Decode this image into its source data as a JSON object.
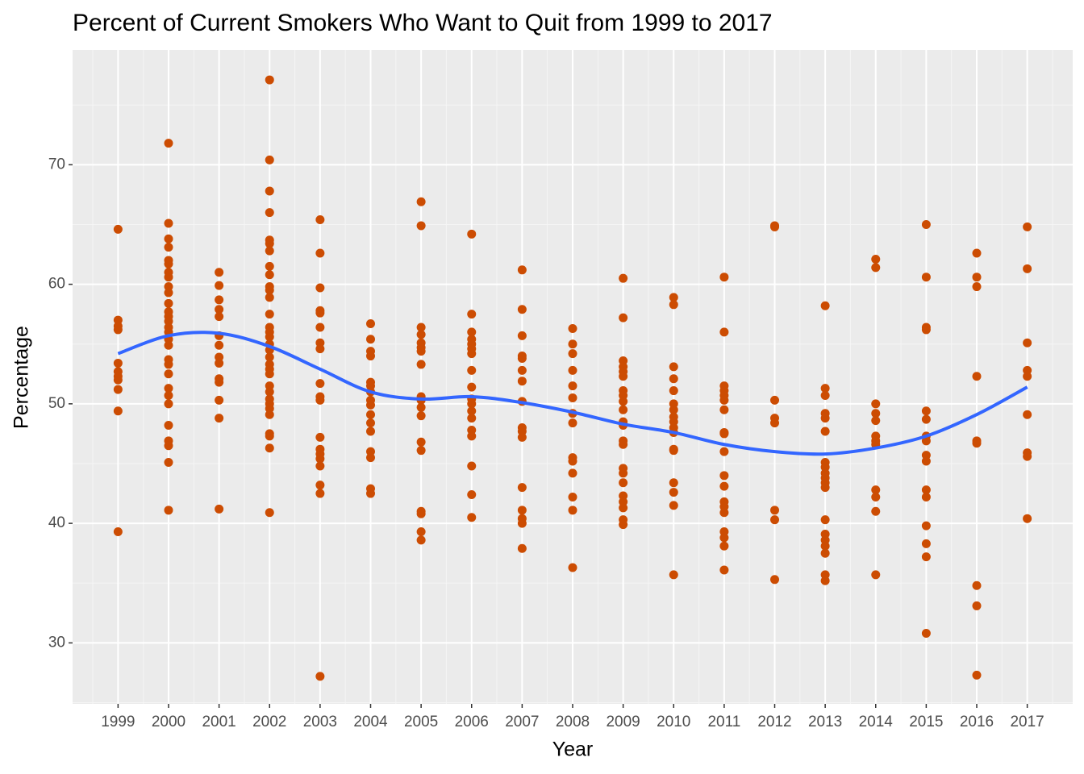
{
  "chart_data": {
    "type": "scatter",
    "title": "Percent of Current Smokers Who Want to Quit from 1999 to 2017",
    "x_label": "Year",
    "y_label": "Percentage",
    "xlim": [
      1998.1,
      2017.9
    ],
    "ylim": [
      24.9,
      79.6
    ],
    "xticks": [
      1999,
      2000,
      2001,
      2002,
      2003,
      2004,
      2005,
      2006,
      2007,
      2008,
      2009,
      2010,
      2011,
      2012,
      2013,
      2014,
      2015,
      2016,
      2017
    ],
    "yticks": [
      30,
      40,
      50,
      60,
      70
    ],
    "grid": true,
    "minor_grid": true,
    "series": [
      {
        "type": "scatter",
        "color": "#cc4c02",
        "x": [
          1999,
          2000,
          2001,
          2002,
          2003,
          2004,
          2005,
          2006,
          2007,
          2008,
          2009,
          2010,
          2011,
          2012,
          2013,
          2014,
          2015,
          2016,
          2017
        ],
        "values": [
          [
            64.6,
            57.0,
            56.5,
            56.2,
            53.4,
            52.7,
            52.3,
            52.0,
            51.2,
            49.4,
            39.3
          ],
          [
            71.8,
            65.1,
            63.8,
            63.1,
            62.0,
            61.7,
            61.0,
            60.6,
            59.8,
            59.3,
            58.4,
            57.7,
            57.3,
            56.9,
            56.4,
            56.0,
            55.4,
            54.9,
            53.7,
            53.3,
            52.5,
            51.3,
            50.7,
            50.0,
            48.2,
            46.9,
            46.5,
            45.1,
            41.1
          ],
          [
            61.0,
            59.9,
            58.7,
            57.9,
            57.3,
            55.7,
            54.9,
            53.9,
            53.4,
            52.1,
            51.8,
            50.3,
            48.8,
            41.2
          ],
          [
            77.1,
            70.4,
            67.8,
            66.0,
            63.7,
            63.4,
            62.8,
            61.5,
            60.8,
            59.8,
            59.5,
            58.9,
            57.5,
            56.4,
            56.0,
            55.6,
            55.0,
            54.5,
            53.9,
            53.3,
            52.9,
            52.5,
            51.5,
            51.0,
            50.4,
            50.0,
            49.6,
            49.1,
            47.5,
            47.3,
            46.3,
            40.9
          ],
          [
            65.4,
            62.6,
            59.7,
            57.8,
            57.6,
            56.4,
            55.1,
            54.6,
            51.7,
            50.6,
            50.3,
            47.2,
            46.2,
            45.8,
            45.4,
            44.8,
            43.2,
            42.5,
            27.2
          ],
          [
            56.7,
            55.4,
            54.4,
            54.0,
            51.8,
            51.5,
            51.0,
            50.3,
            49.9,
            49.1,
            48.4,
            47.7,
            46.0,
            45.5,
            42.9,
            42.5
          ],
          [
            66.9,
            64.9,
            56.4,
            55.8,
            55.1,
            54.7,
            54.4,
            53.3,
            50.6,
            50.3,
            49.7,
            49.0,
            46.8,
            46.1,
            41.0,
            40.8,
            39.3,
            38.6
          ],
          [
            64.2,
            57.5,
            56.0,
            55.4,
            55.0,
            54.6,
            54.2,
            52.8,
            51.4,
            50.4,
            50.0,
            49.4,
            48.8,
            47.8,
            47.3,
            44.8,
            42.4,
            40.5
          ],
          [
            61.2,
            57.9,
            55.7,
            54.0,
            53.8,
            52.8,
            51.9,
            50.2,
            48.0,
            47.7,
            47.2,
            43.0,
            41.1,
            40.4,
            40.0,
            37.9
          ],
          [
            56.3,
            55.0,
            54.2,
            52.8,
            51.5,
            50.5,
            49.2,
            48.4,
            45.5,
            45.2,
            44.2,
            42.2,
            41.1,
            36.3
          ],
          [
            60.5,
            57.2,
            53.6,
            53.1,
            52.7,
            52.3,
            51.1,
            50.7,
            50.2,
            49.5,
            48.5,
            48.2,
            46.9,
            46.6,
            44.6,
            44.2,
            43.4,
            42.3,
            41.8,
            41.3,
            40.3,
            39.9
          ],
          [
            58.9,
            58.3,
            53.1,
            52.1,
            51.1,
            50.0,
            49.5,
            48.9,
            48.5,
            48.0,
            47.6,
            46.2,
            46.1,
            43.4,
            42.6,
            41.5,
            35.7
          ],
          [
            60.6,
            56.0,
            51.5,
            51.1,
            50.7,
            50.3,
            49.5,
            47.6,
            47.5,
            46.0,
            44.0,
            43.1,
            41.8,
            41.4,
            40.9,
            39.3,
            38.8,
            38.1,
            36.1
          ],
          [
            64.9,
            64.8,
            50.3,
            48.8,
            48.4,
            41.1,
            40.3,
            35.3
          ],
          [
            58.2,
            51.3,
            50.7,
            49.2,
            48.8,
            47.7,
            45.1,
            44.7,
            44.2,
            43.8,
            43.4,
            43.0,
            40.3,
            39.1,
            38.6,
            38.1,
            37.5,
            35.7,
            35.2
          ],
          [
            62.1,
            61.4,
            50.0,
            49.2,
            48.6,
            47.3,
            46.9,
            46.6,
            42.8,
            42.2,
            41.0,
            35.7
          ],
          [
            65.0,
            60.6,
            56.4,
            56.2,
            49.4,
            48.7,
            47.3,
            46.9,
            45.7,
            45.2,
            42.8,
            42.2,
            39.8,
            38.3,
            37.2,
            30.8
          ],
          [
            62.6,
            60.6,
            59.8,
            52.3,
            46.9,
            46.7,
            34.8,
            33.1,
            27.3
          ],
          [
            64.8,
            61.3,
            55.1,
            52.8,
            52.3,
            49.1,
            45.9,
            45.6,
            40.4
          ]
        ]
      },
      {
        "type": "line",
        "color": "#3366ff",
        "x": [
          1999,
          2000,
          2001,
          2002,
          2003,
          2004,
          2005,
          2006,
          2007,
          2008,
          2009,
          2010,
          2011,
          2012,
          2013,
          2014,
          2015,
          2016,
          2017
        ],
        "values": [
          54.2,
          55.7,
          55.9,
          54.8,
          52.9,
          51.0,
          50.4,
          50.6,
          50.1,
          49.3,
          48.3,
          47.6,
          46.6,
          46.0,
          45.8,
          46.3,
          47.3,
          49.1,
          51.4
        ]
      }
    ]
  }
}
